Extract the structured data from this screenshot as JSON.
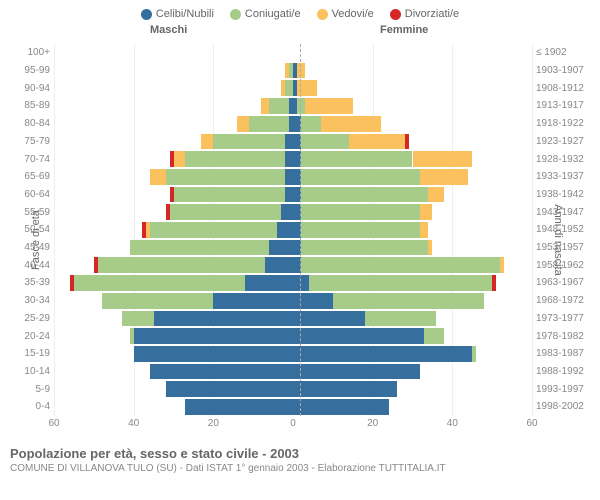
{
  "legend": [
    {
      "label": "Celibi/Nubili",
      "color": "#366f9d"
    },
    {
      "label": "Coniugati/e",
      "color": "#a7cc89"
    },
    {
      "label": "Vedovi/e",
      "color": "#fbc15e"
    },
    {
      "label": "Divorziati/e",
      "color": "#d62728"
    }
  ],
  "labels": {
    "male": "Maschi",
    "female": "Femmine",
    "ylabel_left": "Fasce di età",
    "ylabel_right": "Anni di nascita"
  },
  "axis": {
    "max": 60,
    "ticks": [
      60,
      40,
      20,
      0,
      20,
      40,
      60
    ]
  },
  "colors": {
    "single": "#366f9d",
    "married": "#a7cc89",
    "widowed": "#fbc15e",
    "divorced": "#d62728",
    "bg": "#ffffff",
    "grid": "#eeeeee"
  },
  "rows": [
    {
      "age": "100+",
      "birth": "≤ 1902",
      "m": {
        "s": 0,
        "c": 0,
        "w": 0,
        "d": 0
      },
      "f": {
        "s": 0,
        "c": 0,
        "w": 0,
        "d": 0
      }
    },
    {
      "age": "95-99",
      "birth": "1903-1907",
      "m": {
        "s": 0,
        "c": 1,
        "w": 1,
        "d": 0
      },
      "f": {
        "s": 1,
        "c": 0,
        "w": 2,
        "d": 0
      }
    },
    {
      "age": "90-94",
      "birth": "1908-1912",
      "m": {
        "s": 0,
        "c": 2,
        "w": 1,
        "d": 0
      },
      "f": {
        "s": 1,
        "c": 0,
        "w": 5,
        "d": 0
      }
    },
    {
      "age": "85-89",
      "birth": "1913-1917",
      "m": {
        "s": 1,
        "c": 5,
        "w": 2,
        "d": 0
      },
      "f": {
        "s": 1,
        "c": 2,
        "w": 12,
        "d": 0
      }
    },
    {
      "age": "80-84",
      "birth": "1918-1922",
      "m": {
        "s": 1,
        "c": 10,
        "w": 3,
        "d": 0
      },
      "f": {
        "s": 2,
        "c": 5,
        "w": 15,
        "d": 0
      }
    },
    {
      "age": "75-79",
      "birth": "1923-1927",
      "m": {
        "s": 2,
        "c": 18,
        "w": 3,
        "d": 0
      },
      "f": {
        "s": 2,
        "c": 12,
        "w": 14,
        "d": 1
      }
    },
    {
      "age": "70-74",
      "birth": "1928-1932",
      "m": {
        "s": 2,
        "c": 25,
        "w": 3,
        "d": 1
      },
      "f": {
        "s": 2,
        "c": 28,
        "w": 15,
        "d": 0
      }
    },
    {
      "age": "65-69",
      "birth": "1933-1937",
      "m": {
        "s": 2,
        "c": 30,
        "w": 4,
        "d": 0
      },
      "f": {
        "s": 2,
        "c": 30,
        "w": 12,
        "d": 0
      }
    },
    {
      "age": "60-64",
      "birth": "1938-1942",
      "m": {
        "s": 2,
        "c": 28,
        "w": 0,
        "d": 1
      },
      "f": {
        "s": 2,
        "c": 32,
        "w": 4,
        "d": 0
      }
    },
    {
      "age": "55-59",
      "birth": "1943-1947",
      "m": {
        "s": 3,
        "c": 28,
        "w": 0,
        "d": 1
      },
      "f": {
        "s": 2,
        "c": 30,
        "w": 3,
        "d": 0
      }
    },
    {
      "age": "50-54",
      "birth": "1948-1952",
      "m": {
        "s": 4,
        "c": 32,
        "w": 1,
        "d": 1
      },
      "f": {
        "s": 2,
        "c": 30,
        "w": 2,
        "d": 0
      }
    },
    {
      "age": "45-49",
      "birth": "1953-1957",
      "m": {
        "s": 6,
        "c": 35,
        "w": 0,
        "d": 0
      },
      "f": {
        "s": 2,
        "c": 32,
        "w": 1,
        "d": 0
      }
    },
    {
      "age": "40-44",
      "birth": "1958-1962",
      "m": {
        "s": 7,
        "c": 42,
        "w": 0,
        "d": 1
      },
      "f": {
        "s": 2,
        "c": 50,
        "w": 1,
        "d": 0
      }
    },
    {
      "age": "35-39",
      "birth": "1963-1967",
      "m": {
        "s": 12,
        "c": 43,
        "w": 0,
        "d": 1
      },
      "f": {
        "s": 4,
        "c": 46,
        "w": 0,
        "d": 1
      }
    },
    {
      "age": "30-34",
      "birth": "1968-1972",
      "m": {
        "s": 20,
        "c": 28,
        "w": 0,
        "d": 0
      },
      "f": {
        "s": 10,
        "c": 38,
        "w": 0,
        "d": 0
      }
    },
    {
      "age": "25-29",
      "birth": "1973-1977",
      "m": {
        "s": 35,
        "c": 8,
        "w": 0,
        "d": 0
      },
      "f": {
        "s": 18,
        "c": 18,
        "w": 0,
        "d": 0
      }
    },
    {
      "age": "20-24",
      "birth": "1978-1982",
      "m": {
        "s": 40,
        "c": 1,
        "w": 0,
        "d": 0
      },
      "f": {
        "s": 33,
        "c": 5,
        "w": 0,
        "d": 0
      }
    },
    {
      "age": "15-19",
      "birth": "1983-1987",
      "m": {
        "s": 40,
        "c": 0,
        "w": 0,
        "d": 0
      },
      "f": {
        "s": 45,
        "c": 1,
        "w": 0,
        "d": 0
      }
    },
    {
      "age": "10-14",
      "birth": "1988-1992",
      "m": {
        "s": 36,
        "c": 0,
        "w": 0,
        "d": 0
      },
      "f": {
        "s": 32,
        "c": 0,
        "w": 0,
        "d": 0
      }
    },
    {
      "age": "5-9",
      "birth": "1993-1997",
      "m": {
        "s": 32,
        "c": 0,
        "w": 0,
        "d": 0
      },
      "f": {
        "s": 26,
        "c": 0,
        "w": 0,
        "d": 0
      }
    },
    {
      "age": "0-4",
      "birth": "1998-2002",
      "m": {
        "s": 27,
        "c": 0,
        "w": 0,
        "d": 0
      },
      "f": {
        "s": 24,
        "c": 0,
        "w": 0,
        "d": 0
      }
    }
  ],
  "footer": {
    "title": "Popolazione per età, sesso e stato civile - 2003",
    "subtitle": "COMUNE DI VILLANOVA TULO (SU) - Dati ISTAT 1° gennaio 2003 - Elaborazione TUTTITALIA.IT"
  }
}
